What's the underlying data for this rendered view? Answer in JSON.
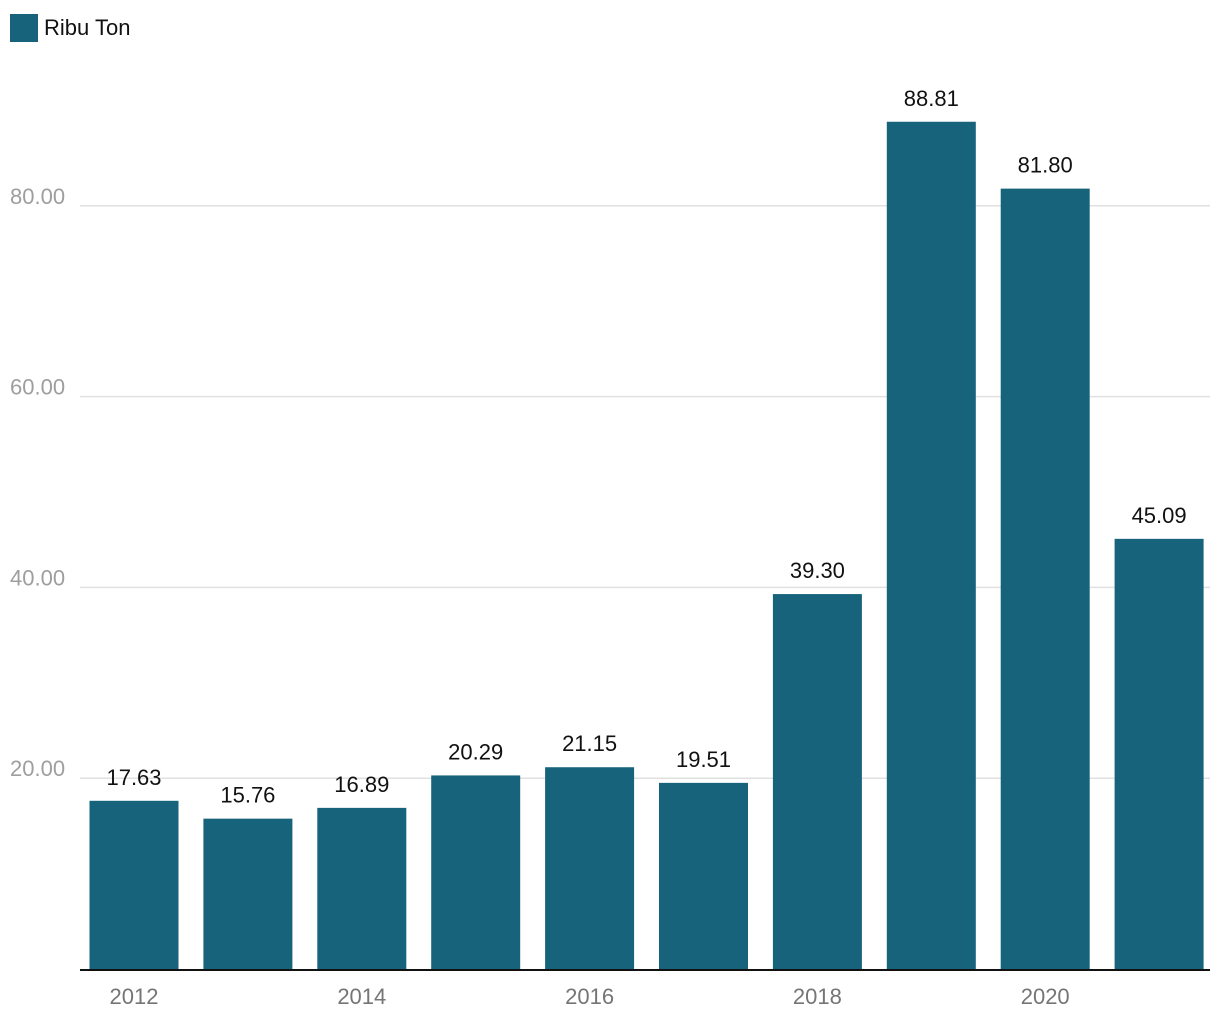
{
  "legend": {
    "label": "Ribu Ton"
  },
  "colors": {
    "bar": "#17637c",
    "grid": "#e0e0e0",
    "axis": "#111111"
  },
  "chart_data": {
    "type": "bar",
    "categories": [
      "2012",
      "2013",
      "2014",
      "2015",
      "2016",
      "2017",
      "2018",
      "2019",
      "2020",
      "2021"
    ],
    "x_tick_labels": [
      "2012",
      "",
      "2014",
      "",
      "2016",
      "",
      "2018",
      "",
      "2020",
      ""
    ],
    "series": [
      {
        "name": "Ribu Ton",
        "values": [
          17.63,
          15.76,
          16.89,
          20.29,
          21.15,
          19.51,
          39.3,
          88.81,
          81.8,
          45.09
        ],
        "labels": [
          "17.63",
          "15.76",
          "16.89",
          "20.29",
          "21.15",
          "19.51",
          "39.30",
          "88.81",
          "81.80",
          "45.09"
        ]
      }
    ],
    "ylim": [
      0,
      100
    ],
    "yticks": [
      20,
      40,
      60,
      80
    ],
    "ytick_labels": [
      "20.00",
      "40.00",
      "60.00",
      "80.00"
    ],
    "grid": true,
    "legend_position": "top-left",
    "title": "",
    "xlabel": "",
    "ylabel": ""
  }
}
